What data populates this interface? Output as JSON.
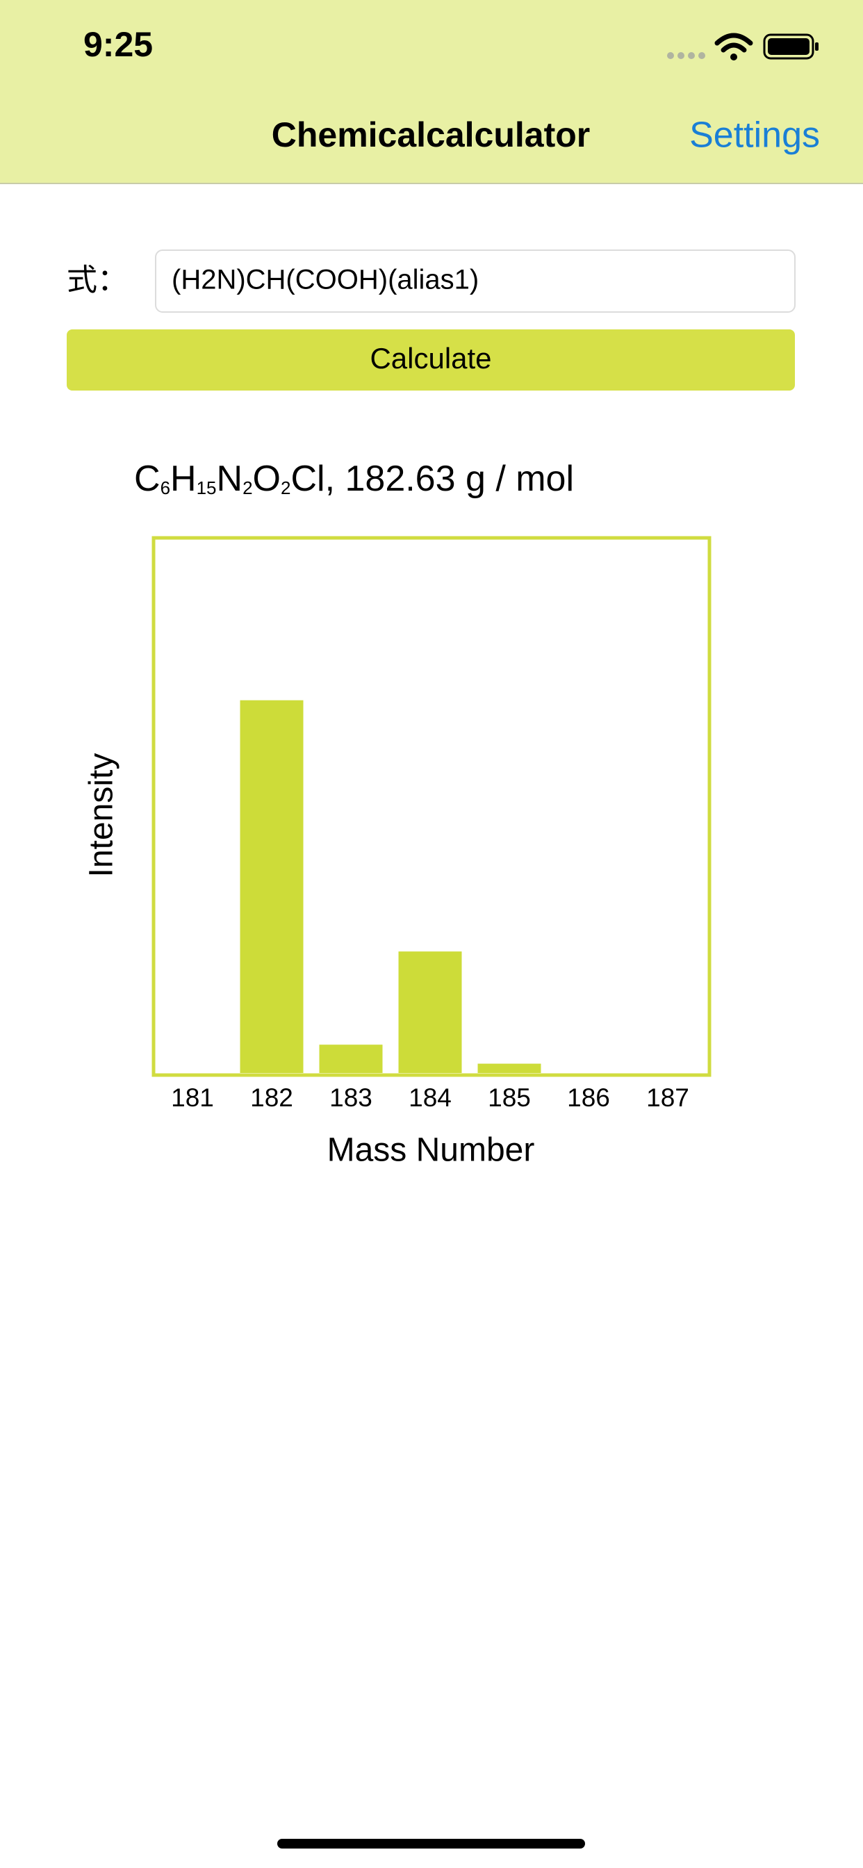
{
  "status_bar": {
    "time": "9:25"
  },
  "nav": {
    "title": "Chemicalcalculator",
    "action": "Settings"
  },
  "form": {
    "label": "式：",
    "input": "(H2N)CH(COOH)(alias1)",
    "button": "Calculate"
  },
  "result": {
    "formula": [
      {
        "symbol": "C",
        "sub": "6"
      },
      {
        "symbol": "H",
        "sub": "15"
      },
      {
        "symbol": "N",
        "sub": "2"
      },
      {
        "symbol": "O",
        "sub": "2"
      },
      {
        "symbol": "Cl"
      }
    ],
    "mass": ", 182.63 g / mol"
  },
  "chart_data": {
    "type": "bar",
    "xlabel": "Mass Number",
    "ylabel": "Intensity",
    "categories": [
      "181",
      "182",
      "183",
      "184",
      "185",
      "186",
      "187"
    ],
    "values": [
      0,
      100,
      7.6,
      32.6,
      2.5,
      0,
      0
    ],
    "color": "#cddc39",
    "frame_color": "#d0dc40",
    "ylim": [
      0,
      143
    ]
  }
}
